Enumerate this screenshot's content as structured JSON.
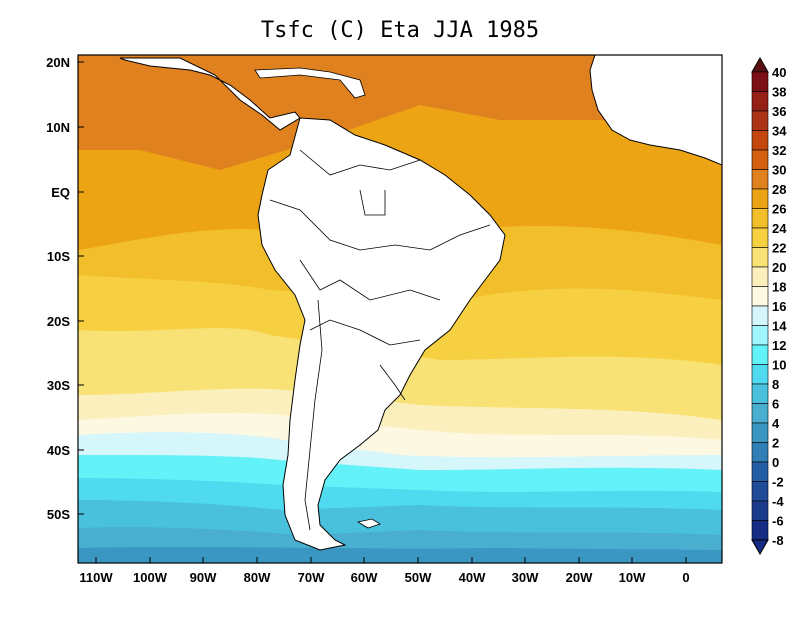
{
  "title": "Tsfc (C) Eta JJA 1985",
  "x_labels": [
    "110W",
    "100W",
    "90W",
    "80W",
    "70W",
    "60W",
    "50W",
    "40W",
    "30W",
    "20W",
    "10W",
    "0"
  ],
  "y_labels": [
    "20N",
    "10N",
    "EQ",
    "10S",
    "20S",
    "30S",
    "40S",
    "50S"
  ],
  "colorbar": {
    "labels": [
      "40",
      "38",
      "36",
      "34",
      "32",
      "30",
      "28",
      "26",
      "24",
      "22",
      "20",
      "18",
      "16",
      "14",
      "12",
      "10",
      "8",
      "6",
      "4",
      "2",
      "0",
      "-2",
      "-4",
      "-6",
      "-8"
    ],
    "colors": [
      "#5a0f10",
      "#7d1015",
      "#962017",
      "#ac3313",
      "#c3470f",
      "#d2600f",
      "#e0811f",
      "#eca414",
      "#f2be2b",
      "#f6d040",
      "#f8e276",
      "#fbf0bd",
      "#fdf8e2",
      "#d5f6fb",
      "#9ff5fb",
      "#63f2f8",
      "#4fdaf0",
      "#49c1dd",
      "#4aaed1",
      "#3a97c2",
      "#307fb6",
      "#245ea4",
      "#1f4b98",
      "#1c3a8c",
      "#162c83"
    ]
  },
  "regions": {
    "map": "sea-surface-temperature-field",
    "land": "south-america-continent"
  }
}
